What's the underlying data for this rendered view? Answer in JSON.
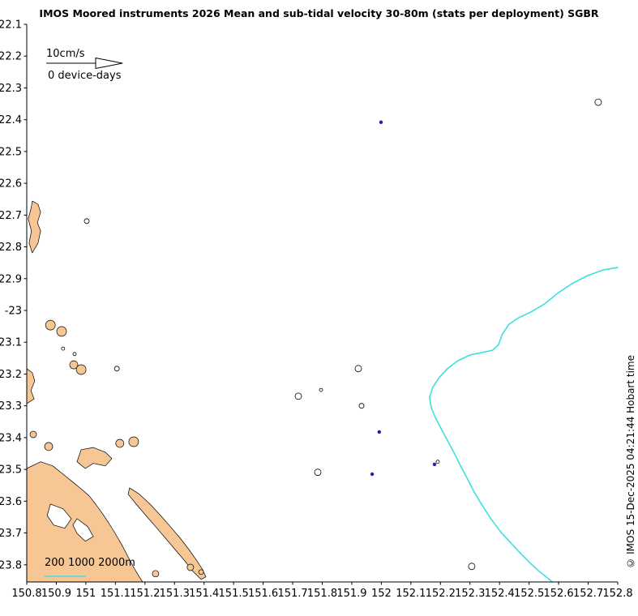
{
  "attribution": "© IMOS 15-Dec-2025 04:21:44 Hobart time",
  "chart_data": {
    "type": "scatter",
    "title": "IMOS Moored instruments 2026 Mean and sub-tidal velocity 30-80m (stats per deployment) SGBR",
    "xlabel": "",
    "ylabel": "",
    "xlim": [
      150.8,
      152.8
    ],
    "ylim_deg_south": [
      22.1,
      23.854
    ],
    "grid": false,
    "x_ticks": {
      "values": [
        150.8,
        150.9,
        151,
        151.1,
        151.2,
        151.3,
        151.4,
        151.5,
        151.6,
        151.7,
        151.8,
        151.9,
        152,
        152.1,
        152.2,
        152.3,
        152.4,
        152.5,
        152.6,
        152.7,
        152.8
      ],
      "labels": [
        "150.8",
        "150.9",
        "151",
        "151.1",
        "151.2",
        "151.3",
        "151.4",
        "151.5",
        "151.6",
        "151.7",
        "151.8",
        "151.9",
        "152",
        "152.1",
        "152.2",
        "152.3",
        "152.4",
        "152.5",
        "152.6",
        "152.7",
        "152.8"
      ]
    },
    "y_ticks": {
      "values": [
        22.1,
        22.2,
        22.3,
        22.4,
        22.5,
        22.6,
        22.7,
        22.8,
        22.9,
        23,
        23.1,
        23.2,
        23.3,
        23.4,
        23.5,
        23.6,
        23.7,
        23.8
      ],
      "labels": [
        "22.1",
        "22.2",
        "22.3",
        "22.4",
        "22.5",
        "22.6",
        "22.7",
        "22.8",
        "22.9",
        "-23",
        "23.1",
        "23.2",
        "23.3",
        "23.4",
        "23.5",
        "23.6",
        "23.7",
        "23.8"
      ]
    },
    "legend": {
      "velocity_scale": "10cm/s",
      "device_days": "0 device-days"
    },
    "depth_scale_label": "200 1000 2000m",
    "colors": {
      "land": "#F6C795",
      "coastline": "#000000",
      "shelf_contour": "#3FDFDF",
      "mooring": "#2121A3",
      "axis": "#000000"
    },
    "moorings_lon_lat_south": [
      [
        151.999,
        22.408
      ],
      [
        151.993,
        23.382
      ],
      [
        151.969,
        23.515
      ],
      [
        152.18,
        23.484
      ]
    ],
    "shelf_contour_lon_lat_south": [
      [
        152.8,
        22.865
      ],
      [
        152.753,
        22.872
      ],
      [
        152.699,
        22.89
      ],
      [
        152.644,
        22.916
      ],
      [
        152.597,
        22.946
      ],
      [
        152.553,
        22.979
      ],
      [
        152.506,
        23.005
      ],
      [
        152.465,
        23.023
      ],
      [
        152.432,
        23.043
      ],
      [
        152.41,
        23.074
      ],
      [
        152.397,
        23.107
      ],
      [
        152.377,
        23.125
      ],
      [
        152.342,
        23.132
      ],
      [
        152.301,
        23.14
      ],
      [
        152.259,
        23.158
      ],
      [
        152.224,
        23.183
      ],
      [
        152.196,
        23.211
      ],
      [
        152.174,
        23.242
      ],
      [
        152.163,
        23.273
      ],
      [
        152.169,
        23.306
      ],
      [
        152.185,
        23.341
      ],
      [
        152.207,
        23.38
      ],
      [
        152.229,
        23.418
      ],
      [
        152.249,
        23.453
      ],
      [
        152.268,
        23.489
      ],
      [
        152.29,
        23.527
      ],
      [
        152.314,
        23.571
      ],
      [
        152.342,
        23.614
      ],
      [
        152.372,
        23.657
      ],
      [
        152.405,
        23.698
      ],
      [
        152.438,
        23.731
      ],
      [
        152.471,
        23.764
      ],
      [
        152.501,
        23.792
      ],
      [
        152.531,
        23.818
      ],
      [
        152.558,
        23.838
      ],
      [
        152.578,
        23.854
      ]
    ],
    "land_polygons": [
      [
        [
          150.819,
          22.656
        ],
        [
          150.838,
          22.666
        ],
        [
          150.847,
          22.691
        ],
        [
          150.836,
          22.724
        ],
        [
          150.847,
          22.75
        ],
        [
          150.838,
          22.788
        ],
        [
          150.819,
          22.819
        ],
        [
          150.808,
          22.788
        ],
        [
          150.816,
          22.75
        ],
        [
          150.805,
          22.712
        ],
        [
          150.814,
          22.681
        ]
      ],
      [
        [
          150.8,
          23.183
        ],
        [
          150.819,
          23.196
        ],
        [
          150.827,
          23.222
        ],
        [
          150.814,
          23.252
        ],
        [
          150.825,
          23.278
        ],
        [
          150.8,
          23.293
        ]
      ],
      [
        [
          150.984,
          23.438
        ],
        [
          151.025,
          23.431
        ],
        [
          151.066,
          23.446
        ],
        [
          151.088,
          23.466
        ],
        [
          151.066,
          23.489
        ],
        [
          151.025,
          23.481
        ],
        [
          150.998,
          23.497
        ],
        [
          150.97,
          23.476
        ]
      ],
      [
        [
          150.8,
          23.497
        ],
        [
          150.847,
          23.476
        ],
        [
          150.888,
          23.489
        ],
        [
          150.923,
          23.515
        ],
        [
          150.956,
          23.54
        ],
        [
          150.984,
          23.561
        ],
        [
          151.011,
          23.583
        ],
        [
          151.033,
          23.609
        ],
        [
          151.055,
          23.637
        ],
        [
          151.077,
          23.668
        ],
        [
          151.099,
          23.701
        ],
        [
          151.121,
          23.736
        ],
        [
          151.143,
          23.775
        ],
        [
          151.162,
          23.808
        ],
        [
          151.181,
          23.838
        ],
        [
          151.192,
          23.854
        ],
        [
          150.8,
          23.854
        ]
      ],
      [
        [
          151.148,
          23.558
        ],
        [
          151.181,
          23.578
        ],
        [
          151.217,
          23.609
        ],
        [
          151.253,
          23.645
        ],
        [
          151.286,
          23.68
        ],
        [
          151.319,
          23.716
        ],
        [
          151.349,
          23.752
        ],
        [
          151.376,
          23.788
        ],
        [
          151.395,
          23.815
        ],
        [
          151.406,
          23.838
        ],
        [
          151.39,
          23.846
        ],
        [
          151.362,
          23.82
        ],
        [
          151.335,
          23.788
        ],
        [
          151.302,
          23.752
        ],
        [
          151.269,
          23.716
        ],
        [
          151.236,
          23.68
        ],
        [
          151.203,
          23.645
        ],
        [
          151.17,
          23.609
        ],
        [
          151.143,
          23.578
        ]
      ]
    ],
    "water_channels": [
      [
        [
          150.88,
          23.609
        ],
        [
          150.923,
          23.624
        ],
        [
          150.951,
          23.655
        ],
        [
          150.929,
          23.685
        ],
        [
          150.891,
          23.675
        ],
        [
          150.869,
          23.645
        ]
      ],
      [
        [
          150.97,
          23.655
        ],
        [
          151.006,
          23.68
        ],
        [
          151.025,
          23.711
        ],
        [
          150.998,
          23.726
        ],
        [
          150.97,
          23.701
        ],
        [
          150.956,
          23.675
        ]
      ]
    ],
    "islands_filled": [
      [
        150.88,
        23.046,
        6
      ],
      [
        150.918,
        23.066,
        6
      ],
      [
        150.959,
        23.171,
        5
      ],
      [
        150.984,
        23.186,
        6
      ],
      [
        150.822,
        23.39,
        4
      ],
      [
        150.874,
        23.428,
        5
      ],
      [
        151.115,
        23.418,
        5
      ],
      [
        151.162,
        23.413,
        6
      ],
      [
        151.236,
        23.828,
        4
      ],
      [
        151.354,
        23.808,
        4
      ],
      [
        151.39,
        23.823,
        3
      ]
    ],
    "islands_outline": [
      [
        151.003,
        22.719,
        3
      ],
      [
        150.923,
        23.12,
        2
      ],
      [
        150.962,
        23.137,
        2
      ],
      [
        151.105,
        23.183,
        3
      ],
      [
        151.719,
        23.27,
        4
      ],
      [
        151.796,
        23.25,
        2
      ],
      [
        151.922,
        23.183,
        4
      ],
      [
        151.933,
        23.3,
        3
      ],
      [
        151.785,
        23.509,
        4
      ],
      [
        152.191,
        23.476,
        2
      ],
      [
        152.306,
        23.805,
        4
      ],
      [
        152.734,
        22.345,
        4
      ]
    ]
  }
}
